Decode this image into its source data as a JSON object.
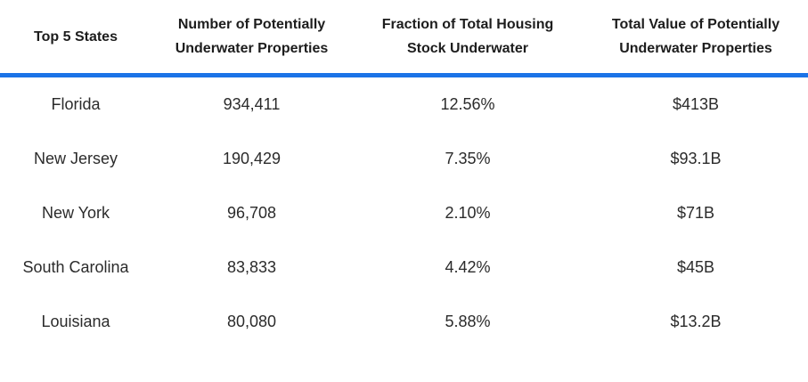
{
  "chart_data": {
    "type": "table",
    "columns": [
      "Top 5 States",
      "Number of Potentially Underwater Properties",
      "Fraction of Total Housing Stock Underwater",
      "Total Value of Potentially Underwater Properties"
    ],
    "rows": [
      {
        "state": "Florida",
        "properties": "934,411",
        "fraction": "12.56%",
        "value": "$413B"
      },
      {
        "state": "New Jersey",
        "properties": "190,429",
        "fraction": "7.35%",
        "value": "$93.1B"
      },
      {
        "state": "New York",
        "properties": "96,708",
        "fraction": "2.10%",
        "value": "$71B"
      },
      {
        "state": "South Carolina",
        "properties": "83,833",
        "fraction": "4.42%",
        "value": "$45B"
      },
      {
        "state": "Louisiana",
        "properties": "80,080",
        "fraction": "5.88%",
        "value": "$13.2B"
      }
    ],
    "accent_color": "#1b73e7",
    "header_text_color": "#1d1d1d",
    "body_text_color": "#2b2b2b",
    "background_color": "#ffffff",
    "legend_position": "none",
    "grid": false
  }
}
